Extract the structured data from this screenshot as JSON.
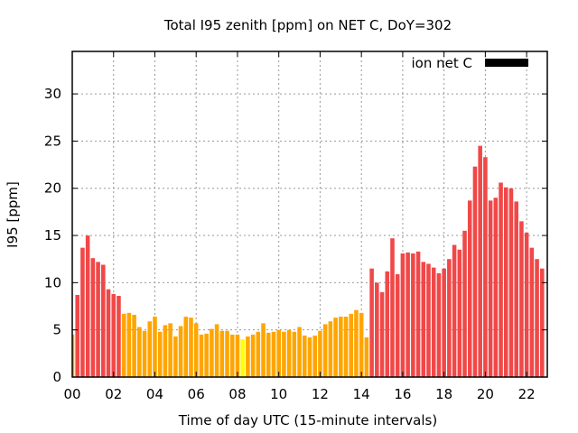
{
  "chart_data": {
    "type": "bar",
    "title": "Total I95 zenith [ppm] on NET C, DoY=302",
    "xlabel": "Time of day UTC (15-minute intervals)",
    "ylabel": "I95 [ppm]",
    "xlim": [
      0,
      23
    ],
    "ylim": [
      0,
      34.5
    ],
    "grid": true,
    "legend": {
      "label": "ion net C",
      "placement": "top-right"
    },
    "x_interval_hours": 0.25,
    "xtick_labels": [
      "00",
      "02",
      "04",
      "06",
      "08",
      "10",
      "12",
      "14",
      "16",
      "18",
      "20",
      "22"
    ],
    "xtick_values": [
      0,
      2,
      4,
      6,
      8,
      10,
      12,
      14,
      16,
      18,
      20,
      22
    ],
    "ytick_values": [
      0,
      5,
      10,
      15,
      20,
      25,
      30
    ],
    "color_thresholds": {
      "yellow_below": 4.1,
      "red_from": 8
    },
    "colors": {
      "yellow": "#ffff00",
      "orange": "#ffa500",
      "red": "#f04848",
      "legend": "#000000"
    },
    "values": [
      4.5,
      8.7,
      13.7,
      15.0,
      12.6,
      12.2,
      11.9,
      9.3,
      8.8,
      8.6,
      6.7,
      6.8,
      6.6,
      5.3,
      4.9,
      5.9,
      6.4,
      4.8,
      5.5,
      5.7,
      4.3,
      5.4,
      6.4,
      6.3,
      5.7,
      4.5,
      4.6,
      5.1,
      5.6,
      4.9,
      4.9,
      4.5,
      4.5,
      4.0,
      4.3,
      4.5,
      4.8,
      5.7,
      4.7,
      4.8,
      5.0,
      4.8,
      5.0,
      4.8,
      5.3,
      4.4,
      4.2,
      4.4,
      4.9,
      5.6,
      5.9,
      6.3,
      6.4,
      6.4,
      6.7,
      7.1,
      6.8,
      4.2,
      11.5,
      10.0,
      9.0,
      11.2,
      14.7,
      10.9,
      13.1,
      13.2,
      13.1,
      13.3,
      12.2,
      12.0,
      11.6,
      11.0,
      11.5,
      12.5,
      14.0,
      13.5,
      15.5,
      18.7,
      22.3,
      24.5,
      23.3,
      18.7,
      19.0,
      20.6,
      20.1,
      20.0,
      18.6,
      16.5,
      15.3,
      13.7,
      12.5,
      11.5
    ]
  }
}
